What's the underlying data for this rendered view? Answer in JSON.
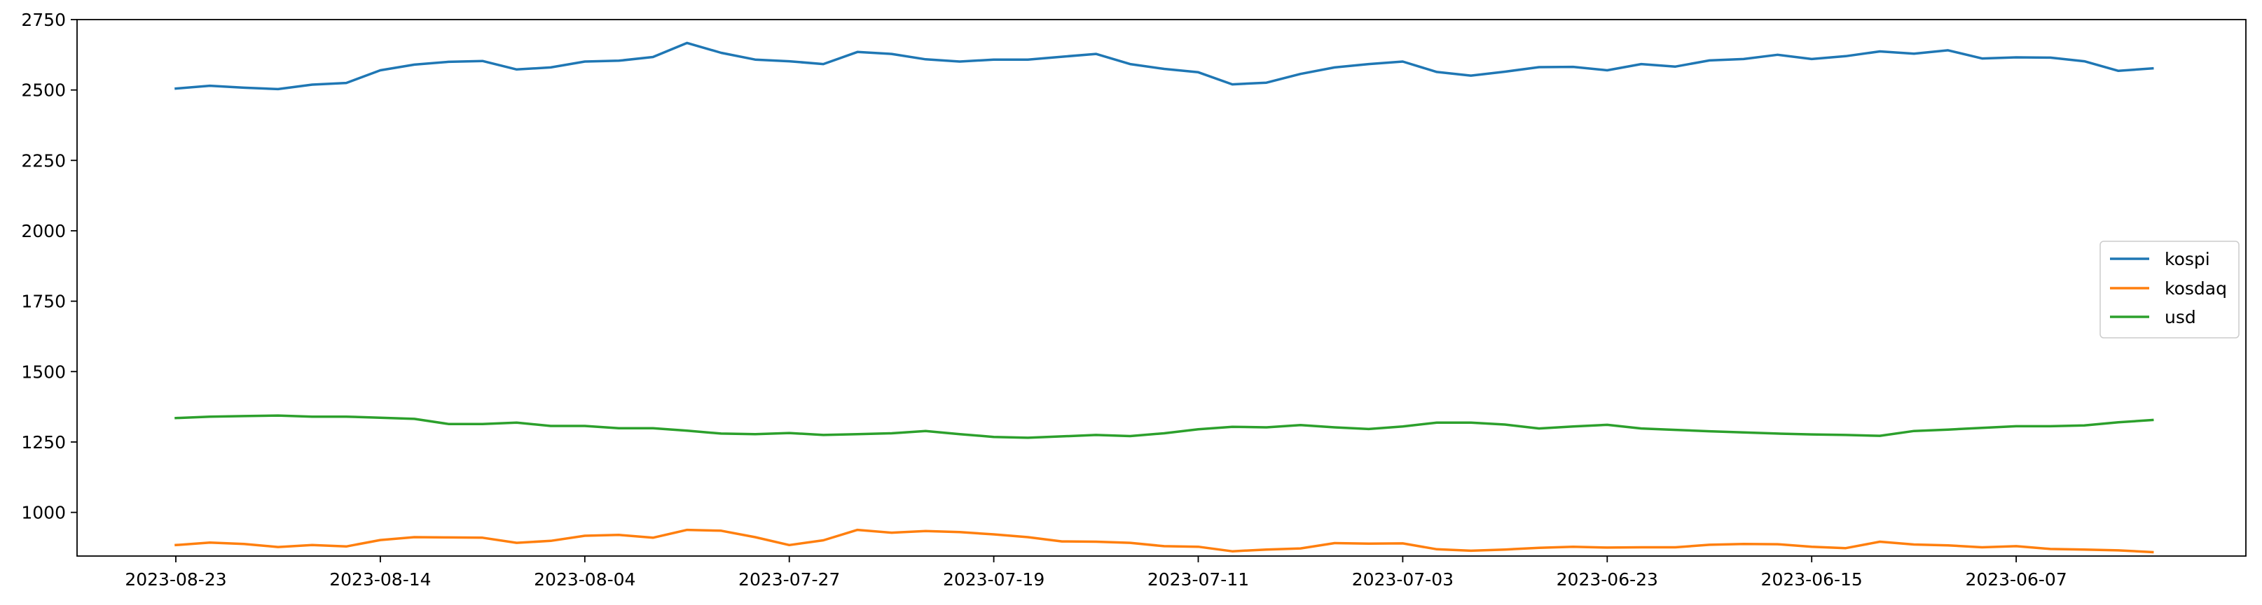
{
  "chart_data": {
    "type": "line",
    "title": "",
    "xlabel": "",
    "ylabel": "",
    "ylim": [
      845,
      2750
    ],
    "yticks": [
      1000,
      1250,
      1500,
      1750,
      2000,
      2250,
      2500,
      2750
    ],
    "xtick_labels": [
      "2023-08-23",
      "2023-08-14",
      "2023-08-04",
      "2023-07-27",
      "2023-07-19",
      "2023-07-11",
      "2023-07-03",
      "2023-06-23",
      "2023-06-15",
      "2023-06-07"
    ],
    "xtick_positions": [
      0,
      6,
      12,
      18,
      24,
      30,
      36,
      42,
      48,
      54
    ],
    "legend_position": "center-right",
    "grid": false,
    "series": [
      {
        "name": "kospi",
        "color": "#1f77b4",
        "values": [
          2505,
          2515,
          2508,
          2503,
          2519,
          2525,
          2570,
          2590,
          2600,
          2603,
          2573,
          2580,
          2601,
          2604,
          2617,
          2667,
          2632,
          2608,
          2602,
          2592,
          2635,
          2628,
          2609,
          2601,
          2608,
          2608,
          2618,
          2628,
          2592,
          2575,
          2563,
          2520,
          2526,
          2557,
          2580,
          2592,
          2601,
          2564,
          2551,
          2565,
          2581,
          2582,
          2570,
          2592,
          2583,
          2605,
          2610,
          2625,
          2610,
          2620,
          2637,
          2629,
          2641,
          2612,
          2616,
          2615,
          2602,
          2568,
          2577
        ]
      },
      {
        "name": "kosdaq",
        "color": "#ff7f0e",
        "values": [
          884,
          893,
          888,
          877,
          884,
          879,
          902,
          912,
          911,
          910,
          892,
          899,
          917,
          920,
          910,
          938,
          935,
          912,
          884,
          901,
          938,
          928,
          934,
          930,
          922,
          912,
          897,
          896,
          892,
          880,
          878,
          862,
          868,
          872,
          891,
          889,
          890,
          869,
          864,
          868,
          874,
          878,
          875,
          876,
          876,
          885,
          888,
          887,
          878,
          873,
          896,
          886,
          883,
          876,
          880,
          870,
          868,
          865,
          859
        ]
      },
      {
        "name": "usd",
        "color": "#2ca02c",
        "values": [
          1335,
          1340,
          1342,
          1344,
          1340,
          1340,
          1336,
          1332,
          1314,
          1314,
          1319,
          1307,
          1307,
          1299,
          1299,
          1290,
          1280,
          1278,
          1282,
          1275,
          1278,
          1281,
          1289,
          1278,
          1268,
          1265,
          1270,
          1275,
          1271,
          1281,
          1295,
          1304,
          1302,
          1310,
          1302,
          1296,
          1305,
          1319,
          1319,
          1312,
          1298,
          1305,
          1311,
          1298,
          1293,
          1288,
          1284,
          1280,
          1277,
          1275,
          1272,
          1289,
          1294,
          1300,
          1306,
          1306,
          1309,
          1320,
          1328
        ]
      }
    ]
  }
}
